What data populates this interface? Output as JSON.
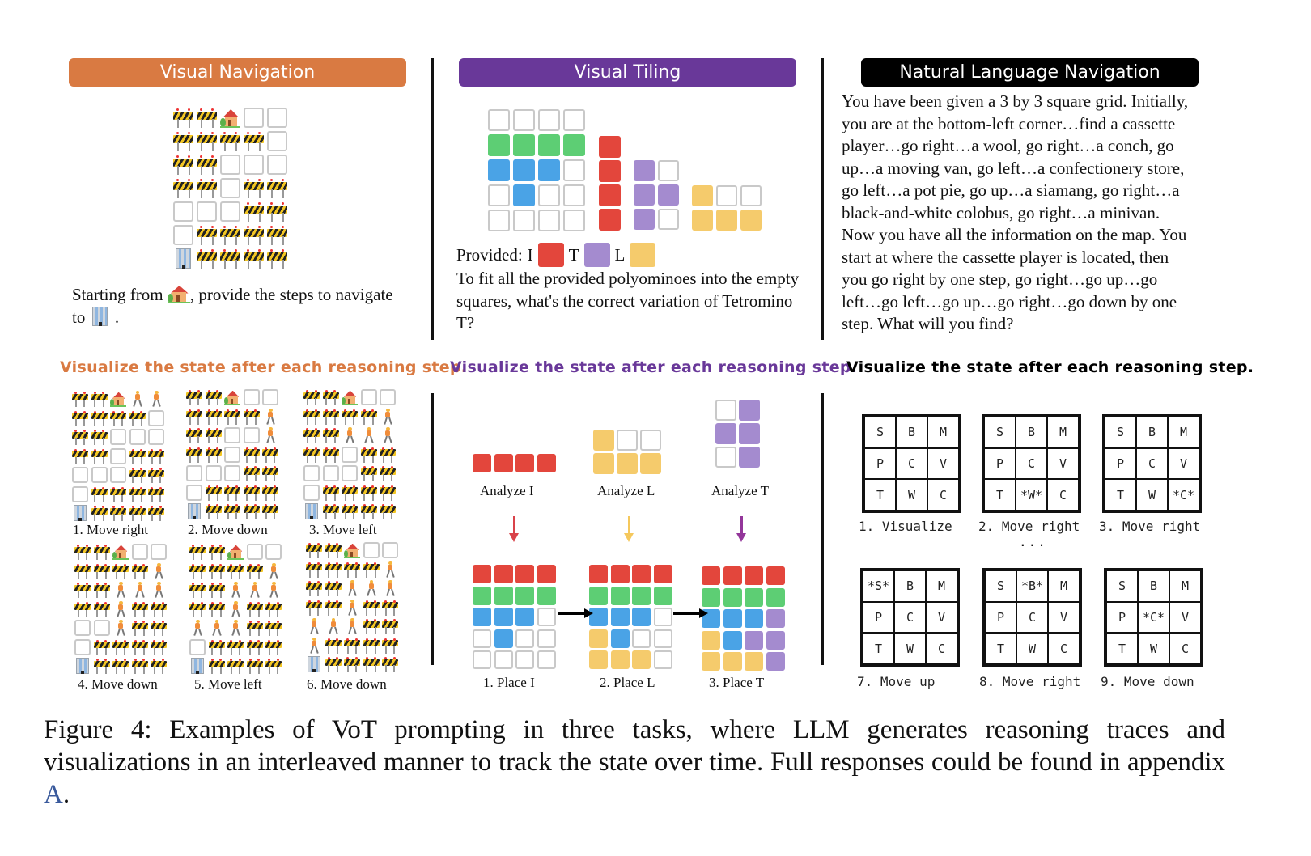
{
  "colors": {
    "orange": "#d97a42",
    "purple": "#693899",
    "black": "#000000",
    "tile_red": "#e3463c",
    "tile_green": "#5dce74",
    "tile_blue": "#4aa3e6",
    "tile_purple": "#a48bcf",
    "tile_yellow": "#f5cb6c",
    "arrow_red": "#d9434a",
    "arrow_yellow": "#f5c85c",
    "arrow_purple": "#93369a",
    "link_blue": "#3a5a9c"
  },
  "panels": {
    "visual_navigation": {
      "title": "Visual Navigation",
      "legend": "B = barrier icon, H = house icon (start), O = office building icon (goal), E = empty square, W = walking person icon",
      "map": [
        "BBHEE",
        "BBBBE",
        "BBEEE",
        "BBEBB",
        "EEEBB",
        "EBBBB",
        "OBBBB"
      ],
      "question_part1": "Starting from",
      "question_part2": ", provide the steps to navigate",
      "question_part3": "to",
      "question_part4": ".",
      "start_icon": "house-with-garden-icon",
      "goal_icon": "office-building-icon",
      "vot_heading": "Visualize the state after each reasoning step.",
      "steps": [
        {
          "label": "1. Move right",
          "map": [
            "BBHWW",
            "BBBBE",
            "BBEEE",
            "BBEBB",
            "EEEBB",
            "EBBBB",
            "OBBBB"
          ]
        },
        {
          "label": "2. Move down",
          "map": [
            "BBHEE",
            "BBBBW",
            "BBEEW",
            "BBEBB",
            "EEEBB",
            "EBBBB",
            "OBBBB"
          ]
        },
        {
          "label": "3. Move left",
          "map": [
            "BBHEE",
            "BBBBW",
            "BBWWW",
            "BBEBB",
            "EEEBB",
            "EBBBB",
            "OBBBB"
          ]
        },
        {
          "label": "4. Move down",
          "map": [
            "BBHEE",
            "BBBBW",
            "BBWWW",
            "BBWBB",
            "EEWBB",
            "EBBBB",
            "OBBBB"
          ]
        },
        {
          "label": "5. Move left",
          "map": [
            "BBHEE",
            "BBBBW",
            "BBWWW",
            "BBWBB",
            "WWWBB",
            "EBBBB",
            "OBBBB"
          ]
        },
        {
          "label": "6. Move down",
          "map": [
            "BBHEE",
            "BBBBW",
            "BBWWW",
            "BBWBB",
            "WWWBB",
            "WBBBB",
            "OBBBB"
          ]
        }
      ]
    },
    "visual_tiling": {
      "title": "Visual Tiling",
      "legend": "E = empty, G = green, U = blue, R = red (I), P = purple (T), Y = yellow (L)",
      "board": [
        "EEEE",
        "GGGG",
        "UUUE",
        "EUEE",
        "EEEE"
      ],
      "piece_I": [
        "R",
        "R",
        "R",
        "R"
      ],
      "piece_T": [
        "PE",
        "PP",
        "PE"
      ],
      "piece_L": [
        "YEE",
        "YYY"
      ],
      "provided_label": "Provided:",
      "provided": [
        {
          "name": "I",
          "color": "#e3463c"
        },
        {
          "name": "T",
          "color": "#a48bcf"
        },
        {
          "name": "L",
          "color": "#f5cb6c"
        }
      ],
      "question": "To fit all the provided polyominoes into the empty squares, what's the correct variation of Tetromino T?",
      "vot_heading": "Visualize the state after each reasoning step.",
      "analyze": [
        {
          "label": "Analyze I",
          "shape": [
            "RRRR"
          ]
        },
        {
          "label": "Analyze L",
          "shape": [
            "YEE",
            "YYY"
          ]
        },
        {
          "label": "Analyze T",
          "shape": [
            "EP",
            "PP",
            "EP"
          ]
        }
      ],
      "placements": [
        {
          "label": "1. Place I",
          "board": [
            "RRRR",
            "GGGG",
            "UUUE",
            "EUEE",
            "EEEE"
          ]
        },
        {
          "label": "2. Place L",
          "board": [
            "RRRR",
            "GGGG",
            "UUUE",
            "YUEE",
            "YYYE"
          ]
        },
        {
          "label": "3. Place T",
          "board": [
            "RRRR",
            "GGGG",
            "UUUP",
            "YUPP",
            "YYYP"
          ]
        }
      ]
    },
    "natural_language_navigation": {
      "title": "Natural Language Navigation",
      "prompt_lines": [
        "You have been given a 3 by 3 square grid. Initially,",
        "you are at the bottom-left corner…find a cassette",
        "player…go right…a wool, go right…a conch, go",
        "up…a moving van, go left…a confectionery store,",
        "go left…a pot pie, go up…a siamang, go right…a",
        "black-and-white colobus, go right…a minivan.",
        "Now you have all the information on the map. You",
        "start at where the cassette player is located, then",
        "you go right by one step, go right…go up…go",
        "left…go left…go up…go right…go down by one",
        "step. What will you find?"
      ],
      "vot_heading": "Visualize the state after each reasoning step.",
      "ellipsis": "...",
      "grids": [
        {
          "label": "1. Visualize",
          "cells": [
            "S",
            "B",
            "M",
            "P",
            "C",
            "V",
            "T",
            "W",
            "C"
          ]
        },
        {
          "label": "2. Move right",
          "cells": [
            "S",
            "B",
            "M",
            "P",
            "C",
            "V",
            "T",
            "*W*",
            "C"
          ]
        },
        {
          "label": "3. Move right",
          "cells": [
            "S",
            "B",
            "M",
            "P",
            "C",
            "V",
            "T",
            "W",
            "*C*"
          ]
        },
        {
          "label": "7. Move up",
          "cells": [
            "*S*",
            "B",
            "M",
            "P",
            "C",
            "V",
            "T",
            "W",
            "C"
          ]
        },
        {
          "label": "8. Move right",
          "cells": [
            "S",
            "*B*",
            "M",
            "P",
            "C",
            "V",
            "T",
            "W",
            "C"
          ]
        },
        {
          "label": "9. Move down",
          "cells": [
            "S",
            "B",
            "M",
            "P",
            "*C*",
            "V",
            "T",
            "W",
            "C"
          ]
        }
      ]
    }
  },
  "caption": {
    "text": "Figure 4: Examples of VoT prompting in three tasks, where LLM generates reasoning traces and visualizations in an interleaved manner to track the state over time. Full responses could be found in appendix ",
    "link": "A",
    "end": "."
  }
}
